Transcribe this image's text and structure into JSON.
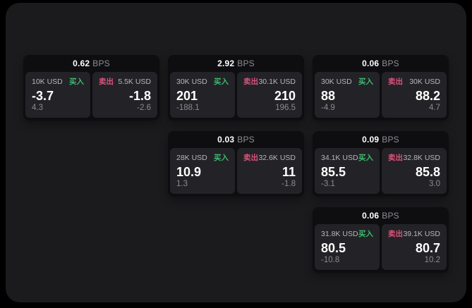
{
  "labels": {
    "buy": "买入",
    "sell": "卖出",
    "bps_unit": "BPS"
  },
  "colors": {
    "buy_accent": "#3cba6e",
    "sell_accent": "#d9547b",
    "outer_background": "#000000",
    "window_background": "#1b1b1d",
    "card_background": "#0e0e10",
    "panel_background": "#232327"
  },
  "cards": [
    {
      "bps": "0.62",
      "buy": {
        "size": "10K USD",
        "price": "-3.7",
        "sub": "4.3"
      },
      "sell": {
        "size": "5.5K USD",
        "price": "-1.8",
        "sub": "-2.6"
      }
    },
    {
      "bps": "2.92",
      "buy": {
        "size": "30K USD",
        "price": "201",
        "sub": "-188.1"
      },
      "sell": {
        "size": "30.1K USD",
        "price": "210",
        "sub": "196.5"
      }
    },
    {
      "bps": "0.06",
      "buy": {
        "size": "30K USD",
        "price": "88",
        "sub": "-4.9"
      },
      "sell": {
        "size": "30K USD",
        "price": "88.2",
        "sub": "4.7"
      }
    },
    {
      "bps": "0.03",
      "buy": {
        "size": "28K USD",
        "price": "10.9",
        "sub": "1.3"
      },
      "sell": {
        "size": "32.6K USD",
        "price": "11",
        "sub": "-1.8"
      }
    },
    {
      "bps": "0.09",
      "buy": {
        "size": "34.1K USD",
        "price": "85.5",
        "sub": "-3.1"
      },
      "sell": {
        "size": "32.8K USD",
        "price": "85.8",
        "sub": "3.0"
      }
    },
    {
      "bps": "0.06",
      "buy": {
        "size": "31.8K USD",
        "price": "80.5",
        "sub": "-10.8"
      },
      "sell": {
        "size": "39.1K USD",
        "price": "80.7",
        "sub": "10.2"
      }
    }
  ]
}
